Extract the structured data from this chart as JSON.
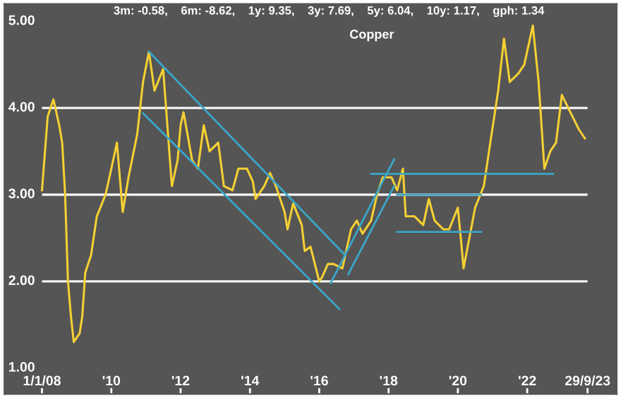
{
  "chart_data": {
    "type": "line",
    "title": "Copper",
    "annotations": [
      "3m: -0.58,    6m: -8.62,    1y: 9.35,    3y: 7.69,    5y: 6.04,    10y: 1.17,    gph: 1.34"
    ],
    "series": [
      {
        "color": "#f5d033",
        "x": [
          "2008-01",
          "2008-03",
          "2008-05",
          "2008-07",
          "2008-08",
          "2008-09",
          "2008-10",
          "2008-11",
          "2008-12",
          "2009-02",
          "2009-03",
          "2009-04",
          "2009-06",
          "2009-08",
          "2009-11",
          "2010-01",
          "2010-03",
          "2010-05",
          "2010-07",
          "2010-10",
          "2010-12",
          "2011-02",
          "2011-04",
          "2011-07",
          "2011-08",
          "2011-10",
          "2011-12",
          "2012-01",
          "2012-02",
          "2012-05",
          "2012-07",
          "2012-09",
          "2012-11",
          "2013-02",
          "2013-04",
          "2013-07",
          "2013-09",
          "2013-12",
          "2014-02",
          "2014-03",
          "2014-06",
          "2014-08",
          "2014-10",
          "2015-01",
          "2015-02",
          "2015-04",
          "2015-07",
          "2015-08",
          "2015-10",
          "2016-01",
          "2016-02",
          "2016-04",
          "2016-06",
          "2016-09",
          "2016-12",
          "2017-02",
          "2017-04",
          "2017-07",
          "2017-09",
          "2017-11",
          "2018-02",
          "2018-04",
          "2018-06",
          "2018-07",
          "2018-10",
          "2019-01",
          "2019-03",
          "2019-05",
          "2019-08",
          "2019-10",
          "2020-01",
          "2020-02",
          "2020-03",
          "2020-05",
          "2020-07",
          "2020-10",
          "2020-12",
          "2021-03",
          "2021-05",
          "2021-07",
          "2021-10",
          "2021-12",
          "2022-03",
          "2022-05",
          "2022-07",
          "2022-09",
          "2022-11",
          "2023-01",
          "2023-04",
          "2023-07",
          "2023-09"
        ],
        "values": [
          3.05,
          3.9,
          4.1,
          3.8,
          3.6,
          3.0,
          2.0,
          1.6,
          1.3,
          1.4,
          1.6,
          2.1,
          2.3,
          2.75,
          3.0,
          3.3,
          3.6,
          2.8,
          3.2,
          3.7,
          4.3,
          4.65,
          4.2,
          4.45,
          4.0,
          3.1,
          3.4,
          3.8,
          3.95,
          3.4,
          3.3,
          3.8,
          3.5,
          3.6,
          3.1,
          3.05,
          3.3,
          3.3,
          3.15,
          2.95,
          3.1,
          3.25,
          3.1,
          2.8,
          2.6,
          2.9,
          2.65,
          2.35,
          2.4,
          2.0,
          2.05,
          2.2,
          2.2,
          2.15,
          2.6,
          2.7,
          2.55,
          2.7,
          3.0,
          3.2,
          3.2,
          3.05,
          3.3,
          2.75,
          2.75,
          2.65,
          2.95,
          2.7,
          2.6,
          2.6,
          2.85,
          2.5,
          2.15,
          2.5,
          2.85,
          3.1,
          3.55,
          4.2,
          4.8,
          4.3,
          4.4,
          4.5,
          4.95,
          4.3,
          3.3,
          3.5,
          3.6,
          4.15,
          3.95,
          3.75,
          3.65
        ]
      },
      {
        "color": "#3aa6c8",
        "x": [
          "2011-02",
          "2016-10"
        ],
        "values": [
          4.65,
          2.3
        ]
      },
      {
        "color": "#3aa6c8",
        "x": [
          "2010-12",
          "2016-08"
        ],
        "values": [
          3.94,
          1.68
        ]
      },
      {
        "color": "#3aa6c8",
        "x": [
          "2016-05",
          "2018-03"
        ],
        "values": [
          1.98,
          3.41
        ]
      },
      {
        "color": "#3aa6c8",
        "x": [
          "2016-11",
          "2018-03"
        ],
        "values": [
          2.08,
          3.1
        ]
      },
      {
        "color": "#3aa6c8",
        "x": [
          "2017-07",
          "2022-10"
        ],
        "values": [
          3.24,
          3.24
        ]
      },
      {
        "color": "#3aa6c8",
        "x": [
          "2018-04",
          "2020-09"
        ],
        "values": [
          3.0,
          3.0
        ]
      },
      {
        "color": "#3aa6c8",
        "x": [
          "2018-04",
          "2020-09"
        ],
        "values": [
          2.57,
          2.57
        ]
      }
    ],
    "xlim": [
      "2006-12",
      "2024-08"
    ],
    "xticks": [
      {
        "value": "2008-01-01",
        "label": "1/1/08"
      },
      {
        "value": "2010-01-01",
        "label": "'10"
      },
      {
        "value": "2012-01-01",
        "label": "'12"
      },
      {
        "value": "2014-01-01",
        "label": "'14"
      },
      {
        "value": "2016-01-01",
        "label": "'16"
      },
      {
        "value": "2018-01-01",
        "label": "'18"
      },
      {
        "value": "2020-01-01",
        "label": "'20"
      },
      {
        "value": "2022-01-01",
        "label": "'22"
      },
      {
        "value": "2023-09-29",
        "label": "29/9/23"
      }
    ],
    "ylim": [
      0.7,
      5.2
    ],
    "yticks": [
      {
        "value": 1,
        "label": "1.00"
      },
      {
        "value": 2,
        "label": "2.00"
      },
      {
        "value": 3,
        "label": "3.00"
      },
      {
        "value": 4,
        "label": "4.00"
      },
      {
        "value": 5,
        "label": "5.00"
      }
    ],
    "ref_lines": [
      {
        "axis": "y",
        "value": 2,
        "color": "#ffffff"
      },
      {
        "axis": "y",
        "value": 3,
        "color": "#ffffff"
      },
      {
        "axis": "y",
        "value": 4,
        "color": "#ffffff"
      }
    ],
    "grid": false,
    "legend": false
  }
}
